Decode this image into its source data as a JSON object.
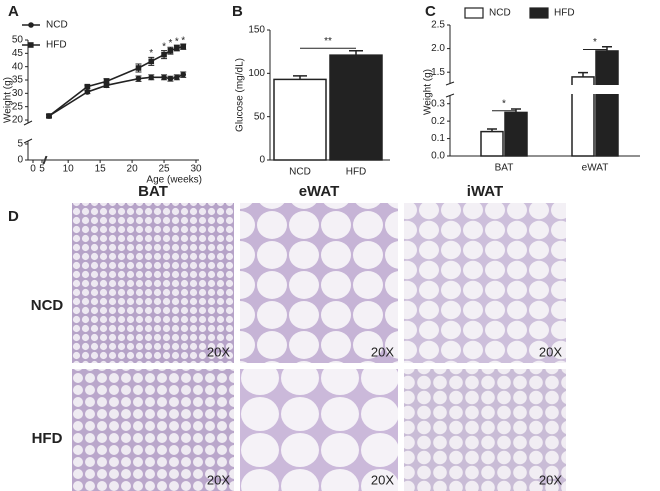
{
  "chart_data": [
    {
      "type": "line",
      "panel": "A",
      "ylabel": "Weight (g)",
      "xlabel": "Age (weeks)",
      "x": [
        7,
        13,
        16,
        21,
        23,
        25,
        26,
        27,
        28
      ],
      "xlim": [
        0,
        30
      ],
      "xbreak": [
        5,
        7
      ],
      "xticks": [
        0,
        5,
        10,
        15,
        20,
        25,
        30
      ],
      "ylim": [
        0,
        50
      ],
      "ybreak": [
        5,
        20
      ],
      "yticks": [
        0,
        5,
        20,
        25,
        30,
        35,
        40,
        45,
        50
      ],
      "series": [
        {
          "name": "NCD",
          "color": "#222222",
          "marker": "circle",
          "values": [
            21.5,
            30.5,
            33,
            35.5,
            36,
            36,
            35.5,
            36,
            37
          ],
          "errors": [
            0.5,
            0.6,
            0.8,
            1,
            0.9,
            0.9,
            0.9,
            0.9,
            1
          ]
        },
        {
          "name": "HFD",
          "color": "#222222",
          "marker": "square",
          "values": [
            21.5,
            32.5,
            34.5,
            39.5,
            42,
            44.5,
            46,
            47,
            47.5
          ],
          "errors": [
            0.5,
            0.6,
            1,
            1.5,
            1.5,
            1.5,
            1.3,
            1.1,
            1
          ]
        }
      ],
      "annotations": [
        {
          "text": "*",
          "x": 23,
          "y": 45
        },
        {
          "text": "*",
          "x": 25,
          "y": 47.5
        },
        {
          "text": "*",
          "x": 26,
          "y": 48.7
        },
        {
          "text": "*",
          "x": 27,
          "y": 49.3
        },
        {
          "text": "*",
          "x": 28,
          "y": 49.7
        }
      ]
    },
    {
      "type": "bar",
      "panel": "B",
      "ylabel": "Glucose (mg/dL)",
      "categories": [
        "NCD",
        "HFD"
      ],
      "values": [
        93,
        121
      ],
      "errors": [
        4,
        5
      ],
      "colors": [
        "#ffffff",
        "#222222"
      ],
      "ylim": [
        0,
        150
      ],
      "yticks": [
        0,
        50,
        100,
        150
      ],
      "annotations": [
        {
          "text": "**",
          "y": 137
        }
      ]
    },
    {
      "type": "grouped_bar",
      "panel": "C",
      "ylabel": "Weight (g)",
      "categories": [
        "BAT",
        "eWAT"
      ],
      "series": [
        {
          "name": "NCD",
          "color": "#ffffff",
          "values": [
            0.14,
            1.4
          ],
          "errors": [
            0.015,
            0.09
          ]
        },
        {
          "name": "HFD",
          "color": "#222222",
          "values": [
            0.25,
            1.95
          ],
          "errors": [
            0.02,
            0.09
          ]
        }
      ],
      "ylim": [
        0,
        2.5
      ],
      "ybreak": [
        0.35,
        1.25
      ],
      "yticks": [
        {
          "value": 0,
          "label": "0.0"
        },
        0.1,
        0.2,
        0.3,
        1.5,
        {
          "value": 2,
          "label": "2.0"
        },
        2.5
      ],
      "annotations": [
        {
          "text": "*",
          "category": "BAT",
          "y": 0.3
        },
        {
          "text": "*",
          "category": "eWAT",
          "y": 2.13
        }
      ]
    }
  ],
  "panel_d": {
    "label": "D",
    "columns": [
      "BAT",
      "eWAT",
      "iWAT"
    ],
    "rows": [
      "NCD",
      "HFD"
    ],
    "magnification": "20X"
  }
}
